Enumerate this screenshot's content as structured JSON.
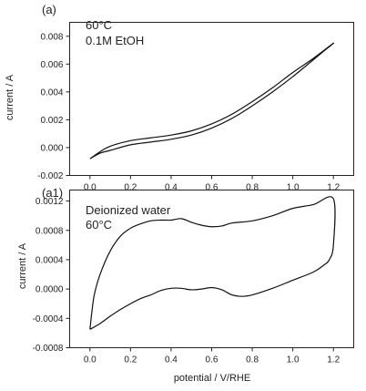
{
  "chart_data": [
    {
      "type": "line",
      "panel_label": "(a)",
      "annotations": [
        "60°C",
        "0.1M EtOH"
      ],
      "xlabel": "",
      "ylabel": "current / A",
      "xlim": [
        -0.1,
        1.3
      ],
      "ylim": [
        -0.002,
        0.009
      ],
      "xticks": [
        0.0,
        0.2,
        0.4,
        0.6,
        0.8,
        1.0,
        1.2
      ],
      "xtick_labels": [
        "0.0",
        "0.2",
        "0.4",
        "0.6",
        "0.8",
        "1.0",
        "1.2"
      ],
      "yticks": [
        -0.002,
        0.0,
        0.002,
        0.004,
        0.006,
        0.008
      ],
      "ytick_labels": [
        "-0.002",
        "0.000",
        "0.002",
        "0.004",
        "0.006",
        "0.008"
      ],
      "grid": false,
      "series": [
        {
          "x": [
            0.0,
            0.05,
            0.1,
            0.2,
            0.3,
            0.4,
            0.5,
            0.6,
            0.7,
            0.8,
            0.9,
            1.0,
            1.1,
            1.2,
            1.15,
            1.1,
            1.0,
            0.9,
            0.8,
            0.7,
            0.6,
            0.5,
            0.4,
            0.3,
            0.2,
            0.1,
            0.05,
            0.0
          ],
          "y": [
            -0.0008,
            -0.0003,
            0.0001,
            0.0005,
            0.0007,
            0.0009,
            0.0012,
            0.0017,
            0.0024,
            0.0033,
            0.0043,
            0.0054,
            0.0064,
            0.0075,
            0.0069,
            0.0063,
            0.0051,
            0.004,
            0.003,
            0.0021,
            0.0014,
            0.0009,
            0.0006,
            0.0004,
            0.0002,
            -0.0002,
            -0.0004,
            -0.0008
          ]
        }
      ]
    },
    {
      "type": "line",
      "panel_label": "(a1)",
      "annotations": [
        "Deionized water",
        "60°C"
      ],
      "xlabel": "potential / V/RHE",
      "ylabel": "current / A",
      "xlim": [
        -0.1,
        1.3
      ],
      "ylim": [
        -0.0008,
        0.00135
      ],
      "xticks": [
        0.0,
        0.2,
        0.4,
        0.6,
        0.8,
        1.0,
        1.2
      ],
      "xtick_labels": [
        "0.0",
        "0.2",
        "0.4",
        "0.6",
        "0.8",
        "1.0",
        "1.2"
      ],
      "yticks": [
        -0.0008,
        -0.0004,
        0.0,
        0.0004,
        0.0008,
        0.0012
      ],
      "ytick_labels": [
        "-0.0008",
        "-0.0004",
        "0.0000",
        "0.0004",
        "0.0008",
        "0.0012"
      ],
      "grid": false,
      "series": [
        {
          "x": [
            0.0,
            0.02,
            0.05,
            0.1,
            0.15,
            0.2,
            0.25,
            0.3,
            0.35,
            0.4,
            0.45,
            0.5,
            0.55,
            0.6,
            0.65,
            0.7,
            0.8,
            0.9,
            1.0,
            1.1,
            1.2,
            1.2,
            1.18,
            1.15,
            1.1,
            1.0,
            0.9,
            0.8,
            0.75,
            0.7,
            0.65,
            0.6,
            0.55,
            0.5,
            0.45,
            0.4,
            0.35,
            0.3,
            0.25,
            0.2,
            0.15,
            0.1,
            0.05,
            0.0
          ],
          "y": [
            -0.00055,
            -0.0001,
            0.0002,
            0.00052,
            0.00072,
            0.00083,
            0.00089,
            0.00093,
            0.00094,
            0.00094,
            0.00096,
            0.00091,
            0.00087,
            0.00085,
            0.00086,
            0.0009,
            0.00093,
            0.001,
            0.0011,
            0.00115,
            0.00123,
            0.0006,
            0.0004,
            0.00032,
            0.00023,
            0.00012,
            1e-05,
            -8e-05,
            -0.0001,
            -8e-05,
            -1e-05,
            2e-05,
            0.0,
            -1e-05,
            1e-05,
            1e-05,
            -2e-05,
            -8e-05,
            -0.00013,
            -0.0002,
            -0.00028,
            -0.00037,
            -0.00047,
            -0.00055
          ]
        }
      ]
    }
  ]
}
